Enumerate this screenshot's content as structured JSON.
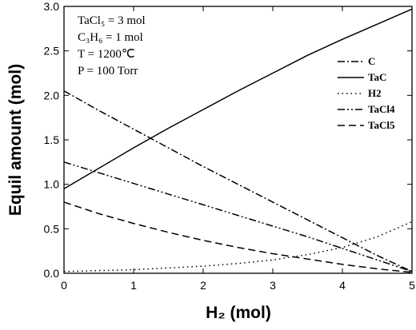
{
  "chart_data": {
    "type": "line",
    "x_label": "H₂ (mol)",
    "y_label": "Equil amount (mol)",
    "annotations": [
      "TaCl₅ = 3 mol",
      "C₃H₆ = 1 mol",
      "T = 1200℃",
      "P = 100 Torr"
    ],
    "x": [
      0,
      0.5,
      1,
      1.5,
      2,
      2.5,
      3,
      3.5,
      4,
      4.5,
      5
    ],
    "series": [
      {
        "name": "C",
        "color": "#000000",
        "dash": "9 3 2 3",
        "values": [
          2.05,
          1.83,
          1.62,
          1.41,
          1.2,
          1.0,
          0.8,
          0.6,
          0.4,
          0.2,
          0.02
        ]
      },
      {
        "name": "TaC",
        "color": "#000000",
        "dash": "none",
        "values": [
          0.95,
          1.18,
          1.41,
          1.63,
          1.84,
          2.05,
          2.25,
          2.45,
          2.63,
          2.8,
          2.97
        ]
      },
      {
        "name": "H2",
        "color": "#000000",
        "dash": "1.5 4",
        "values": [
          0.02,
          0.03,
          0.04,
          0.06,
          0.08,
          0.11,
          0.15,
          0.21,
          0.29,
          0.41,
          0.58
        ]
      },
      {
        "name": "TaCl4",
        "color": "#000000",
        "dash": "9 3 2 3 2 3",
        "values": [
          1.25,
          1.13,
          1.01,
          0.89,
          0.77,
          0.65,
          0.53,
          0.41,
          0.28,
          0.15,
          0.02
        ]
      },
      {
        "name": "TaCl5",
        "color": "#000000",
        "dash": "9 5",
        "values": [
          0.8,
          0.67,
          0.56,
          0.46,
          0.37,
          0.29,
          0.22,
          0.16,
          0.1,
          0.05,
          0.01
        ]
      }
    ],
    "xlim": [
      0,
      5
    ],
    "ylim": [
      0,
      3
    ],
    "xticks": [
      0,
      1,
      2,
      3,
      4,
      5
    ],
    "yticks": [
      {
        "value": 0,
        "label": "0.0"
      },
      {
        "value": 0.5,
        "label": "0.5"
      },
      {
        "value": 1,
        "label": "1.0"
      },
      {
        "value": 1.5,
        "label": "1.5"
      },
      {
        "value": 2,
        "label": "2.0"
      },
      {
        "value": 2.5,
        "label": "2.5"
      },
      {
        "value": 3,
        "label": "3.0"
      }
    ],
    "legend": "upper-right"
  }
}
